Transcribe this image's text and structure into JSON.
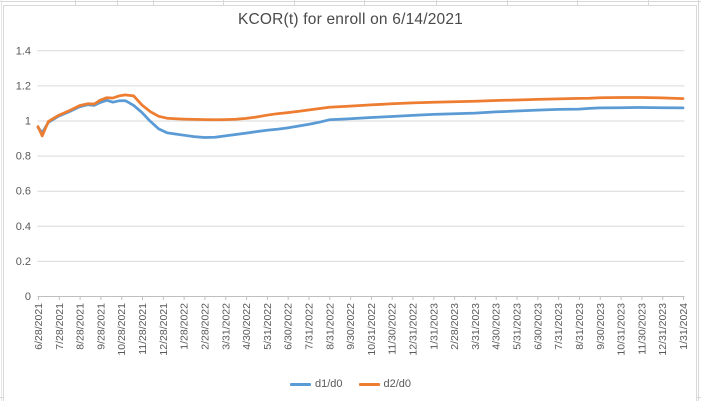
{
  "chart_data": {
    "type": "line",
    "title": "KCOR(t) for enroll on 6/14/2021",
    "xlabel": "",
    "ylabel": "",
    "ylim": [
      0,
      1.4
    ],
    "yticks": [
      0,
      0.2,
      0.4,
      0.6,
      0.8,
      1,
      1.2,
      1.4
    ],
    "grid": true,
    "legend_position": "bottom",
    "categories": [
      "6/28/2021",
      "7/28/2021",
      "8/28/2021",
      "9/28/2021",
      "10/28/2021",
      "11/28/2021",
      "12/28/2021",
      "1/28/2022",
      "2/28/2022",
      "3/31/2022",
      "4/30/2022",
      "5/31/2022",
      "6/30/2022",
      "7/31/2022",
      "8/31/2022",
      "9/30/2022",
      "10/31/2022",
      "11/30/2022",
      "12/31/2022",
      "1/31/2023",
      "2/28/2023",
      "3/31/2023",
      "4/30/2023",
      "5/31/2023",
      "6/30/2023",
      "7/31/2023",
      "8/31/2023",
      "9/30/2023",
      "10/31/2023",
      "11/30/2023",
      "12/31/2023",
      "1/31/2024"
    ],
    "x_unit": "fractional category index",
    "series": [
      {
        "name": "d1/d0",
        "color": "#5B9BD5",
        "x": [
          0,
          0.2,
          0.5,
          1,
          1.5,
          2,
          2.4,
          2.7,
          3,
          3.3,
          3.6,
          3.9,
          4.2,
          4.6,
          5,
          5.4,
          5.8,
          6.2,
          6.6,
          7,
          7.5,
          8,
          8.5,
          9,
          9.5,
          10,
          10.5,
          11,
          11.5,
          12,
          12.5,
          13,
          13.5,
          14,
          15,
          16,
          17,
          18,
          19,
          20,
          21,
          22,
          23,
          24,
          25,
          26,
          26.5,
          27,
          28,
          29,
          30,
          31
        ],
        "values": [
          0.96,
          0.93,
          0.99,
          1.025,
          1.05,
          1.078,
          1.09,
          1.086,
          1.103,
          1.115,
          1.104,
          1.112,
          1.113,
          1.086,
          1.045,
          0.995,
          0.952,
          0.93,
          0.923,
          0.916,
          0.908,
          0.903,
          0.904,
          0.912,
          0.92,
          0.928,
          0.937,
          0.944,
          0.95,
          0.958,
          0.968,
          0.978,
          0.99,
          1.004,
          1.01,
          1.017,
          1.023,
          1.029,
          1.035,
          1.038,
          1.042,
          1.049,
          1.054,
          1.059,
          1.063,
          1.065,
          1.069,
          1.072,
          1.073,
          1.074,
          1.073,
          1.072
        ]
      },
      {
        "name": "d2/d0",
        "color": "#ED7D31",
        "x": [
          0,
          0.2,
          0.5,
          1,
          1.5,
          2,
          2.4,
          2.7,
          3,
          3.3,
          3.6,
          3.9,
          4.2,
          4.6,
          5,
          5.4,
          5.8,
          6.2,
          6.6,
          7,
          7.5,
          8,
          8.5,
          9,
          9.5,
          10,
          10.5,
          11,
          11.5,
          12,
          12.5,
          13,
          13.5,
          14,
          15,
          16,
          17,
          18,
          19,
          20,
          21,
          22,
          23,
          24,
          25,
          26,
          26.5,
          27,
          28,
          29,
          30,
          31
        ],
        "values": [
          0.965,
          0.912,
          0.995,
          1.03,
          1.056,
          1.085,
          1.096,
          1.094,
          1.116,
          1.13,
          1.128,
          1.14,
          1.146,
          1.14,
          1.088,
          1.05,
          1.024,
          1.013,
          1.01,
          1.008,
          1.006,
          1.005,
          1.004,
          1.005,
          1.007,
          1.012,
          1.02,
          1.03,
          1.039,
          1.045,
          1.052,
          1.06,
          1.068,
          1.075,
          1.082,
          1.089,
          1.095,
          1.1,
          1.104,
          1.107,
          1.11,
          1.114,
          1.117,
          1.12,
          1.123,
          1.126,
          1.127,
          1.13,
          1.131,
          1.131,
          1.129,
          1.125
        ]
      }
    ]
  }
}
